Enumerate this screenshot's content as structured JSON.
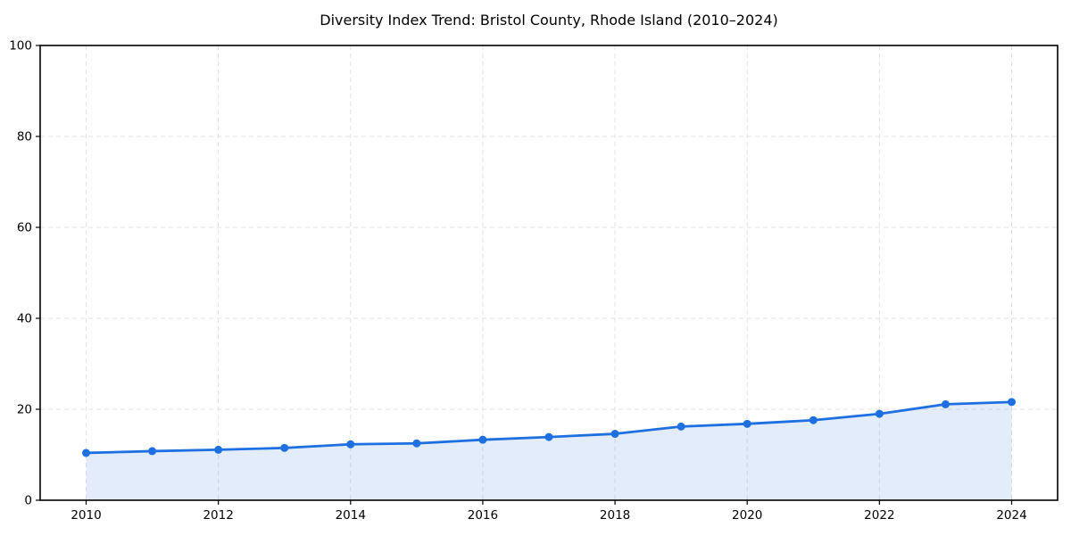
{
  "page": {
    "background": "#ffffff"
  },
  "chart_data": {
    "type": "area",
    "title": "Diversity Index Trend: Bristol County, Rhode Island (2010–2024)",
    "x": [
      2010,
      2011,
      2012,
      2013,
      2014,
      2015,
      2016,
      2017,
      2018,
      2019,
      2020,
      2021,
      2022,
      2023,
      2024
    ],
    "values": [
      10.4,
      10.8,
      11.1,
      11.5,
      12.3,
      12.5,
      13.3,
      13.9,
      14.6,
      16.2,
      16.8,
      17.6,
      19.0,
      21.1,
      21.6
    ],
    "xlabel": "",
    "ylabel": "",
    "xlim": [
      2010,
      2024
    ],
    "ylim": [
      0,
      100
    ],
    "xticks": [
      2010,
      2012,
      2014,
      2016,
      2018,
      2020,
      2022,
      2024
    ],
    "yticks": [
      0,
      20,
      40,
      60,
      80,
      100
    ],
    "grid": true,
    "grid_style": "dashed",
    "legend": false,
    "marker": "circle",
    "colors": {
      "line": "#1e6fe0",
      "fill": "#1e6fe0",
      "fill_opacity": 0.13,
      "grid": "#e2e2e2",
      "axis": "#000000",
      "text": "#000000",
      "background": "#ffffff"
    }
  }
}
